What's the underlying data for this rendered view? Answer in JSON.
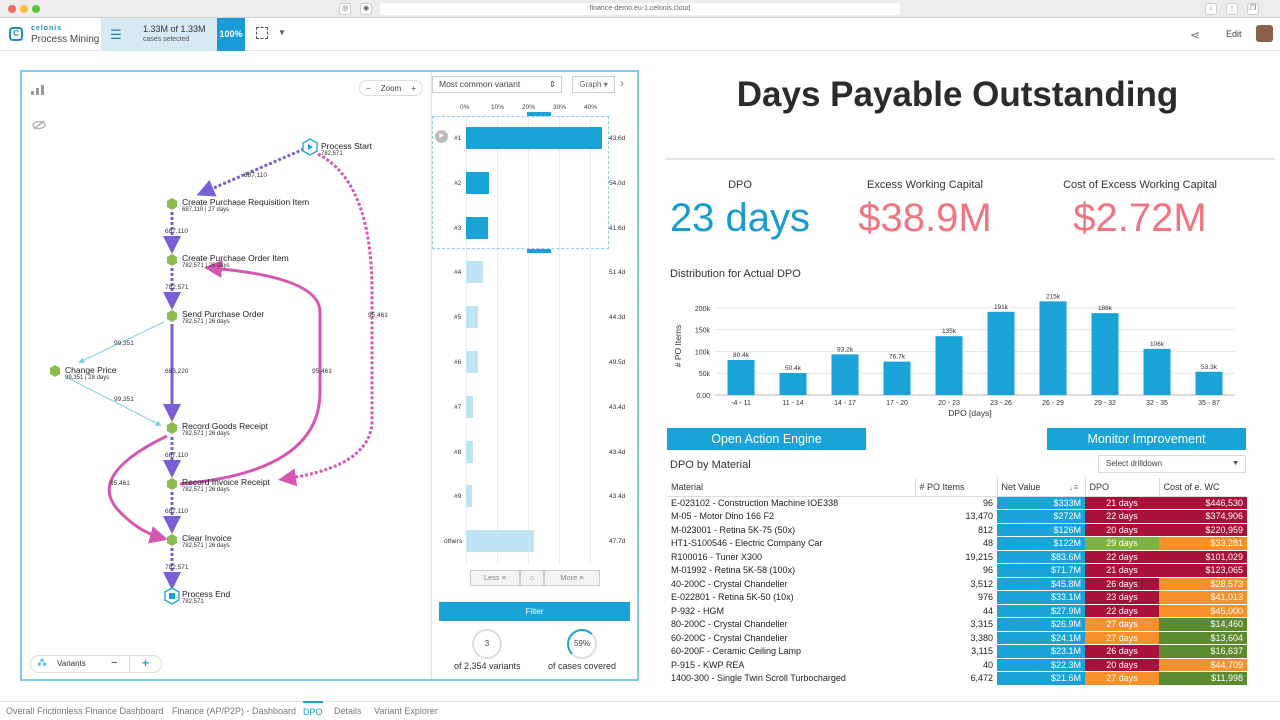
{
  "browser": {
    "url": "finance-demo.eu-1.celonis.cloud"
  },
  "header": {
    "brand": "celonis",
    "product": "Process Mining",
    "cases_count": "1.33M of 1.33M",
    "cases_label": "cases selected",
    "cases_pct": "100%",
    "edit_label": "Edit"
  },
  "graph": {
    "zoom_label": "Zoom",
    "nodes": [
      {
        "label": "Process Start",
        "sub": "782,571"
      },
      {
        "label": "Create Purchase Requisition Item",
        "sub": "687,110 | 27 days"
      },
      {
        "label": "Create Purchase Order Item",
        "sub": "782,571 | 26 days"
      },
      {
        "label": "Send Purchase Order",
        "sub": "782,571 | 26 days"
      },
      {
        "label": "Change Price",
        "sub": "99,351 | 28 days"
      },
      {
        "label": "Record Goods Receipt",
        "sub": "782,571 | 26 days"
      },
      {
        "label": "Record Invoice Receipt",
        "sub": "782,571 | 26 days"
      },
      {
        "label": "Clear Invoice",
        "sub": "782,571 | 26 days"
      },
      {
        "label": "Process End",
        "sub": "782,571"
      }
    ],
    "edges": [
      "687,110",
      "687,110",
      "782,571",
      "99,351",
      "683,220",
      "99,351",
      "95,461",
      "687,110",
      "95,461",
      "687,110",
      "95,461",
      "782,571"
    ],
    "variants_label": "Variants"
  },
  "variants": {
    "select": "Most common variant",
    "view": "Graph",
    "ticks": [
      "0%",
      "10%",
      "20%",
      "30%",
      "40%"
    ],
    "rows": [
      {
        "label": "#1",
        "duration": "43.6d",
        "share": 44
      },
      {
        "label": "#2",
        "duration": "54.0d",
        "share": 7.5
      },
      {
        "label": "#3",
        "duration": "41.6d",
        "share": 7
      },
      {
        "label": "#4",
        "duration": "51.4d",
        "share": 5.5
      },
      {
        "label": "#5",
        "duration": "44.3d",
        "share": 4
      },
      {
        "label": "#6",
        "duration": "49.5d",
        "share": 3.8
      },
      {
        "label": "#7",
        "duration": "43.4d",
        "share": 2.2
      },
      {
        "label": "#8",
        "duration": "43.4d",
        "share": 2.2
      },
      {
        "label": "#9",
        "duration": "43.4d",
        "share": 2
      },
      {
        "label": "others",
        "duration": "47.7d",
        "share": 22
      }
    ],
    "less": "Less",
    "more": "More",
    "filter": "Filter",
    "count": "3",
    "count_label": "of 2,354 variants",
    "coverage": "59%",
    "coverage_label": "of cases covered"
  },
  "title": "Days Payable Outstanding",
  "kpis": [
    {
      "label": "DPO",
      "value": "23 days",
      "color": "#1a9bd0"
    },
    {
      "label": "Excess Working Capital",
      "value": "$38.9M",
      "color": "#ef7580"
    },
    {
      "label": "Cost of Excess Working Capital",
      "value": "$2.72M",
      "color": "#ef7580"
    }
  ],
  "chart_data": {
    "type": "bar",
    "title": "Distribution for Actual DPO",
    "xlabel": "DPO [days]",
    "ylabel": "# PO Items",
    "categories": [
      "-4 - 11",
      "11 - 14",
      "14 - 17",
      "17 - 20",
      "20 - 23",
      "23 - 26",
      "26 - 29",
      "29 - 32",
      "32 - 35",
      "35 - 87"
    ],
    "values": [
      80400,
      50400,
      93200,
      76700,
      135000,
      191000,
      215000,
      188000,
      106000,
      53300
    ],
    "data_labels": [
      "80.4k",
      "50.4k",
      "93.2k",
      "76.7k",
      "135k",
      "191k",
      "215k",
      "188k",
      "106k",
      "53.3k"
    ],
    "yticks": [
      "0.00",
      "50k",
      "100k",
      "150k",
      "200k"
    ],
    "ylim": [
      0,
      225000
    ],
    "color": "#19a3d6"
  },
  "actions": {
    "open": "Open Action Engine",
    "monitor": "Monitor Improvement"
  },
  "table": {
    "title": "DPO by Material",
    "drilldown": "Select drilldown",
    "headers": [
      "Material",
      "# PO Items",
      "Net Value",
      "DPO",
      "Cost of e. WC"
    ],
    "rows": [
      [
        "E-023102 - Construction Machine IOE338",
        "96",
        "$333M",
        "21 days",
        "$446,530"
      ],
      [
        "M-05 - Motor Dino 166 F2",
        "13,470",
        "$272M",
        "22 days",
        "$374,906"
      ],
      [
        "M-023001 - Retina 5K-75 (50x)",
        "812",
        "$126M",
        "20 days",
        "$220,959"
      ],
      [
        "HT1-S100546 - Electric Company Car",
        "48",
        "$122M",
        "29 days",
        "$33,281"
      ],
      [
        "R100016 - Tuner X300",
        "19,215",
        "$83.6M",
        "22 days",
        "$101,029"
      ],
      [
        "M-01992 - Retina 5K-58 (100x)",
        "96",
        "$71.7M",
        "21 days",
        "$123,065"
      ],
      [
        "40-200C - Crystal Chandelier",
        "3,512",
        "$45.8M",
        "26 days",
        "$28,573"
      ],
      [
        "E-022801 - Retina 5K-50 (10x)",
        "976",
        "$33.1M",
        "23 days",
        "$41,013"
      ],
      [
        "P-932 - HGM",
        "44",
        "$27.9M",
        "22 days",
        "$45,000"
      ],
      [
        "80-200C - Crystal Chandelier",
        "3,315",
        "$26.9M",
        "27 days",
        "$14,460"
      ],
      [
        "60-200C - Crystal Chandelier",
        "3,380",
        "$24.1M",
        "27 days",
        "$13,604"
      ],
      [
        "60-200F - Ceramic Ceiling Lamp",
        "3,115",
        "$23.1M",
        "26 days",
        "$16,637"
      ],
      [
        "P-915 - KWP REA",
        "40",
        "$22.3M",
        "20 days",
        "$44,709"
      ],
      [
        "1400-300 - Single Twin Scroll Turbocharged",
        "6,472",
        "$21.6M",
        "27 days",
        "$11,998"
      ]
    ],
    "dpo_colors": [
      "#a8123a",
      "#a8123a",
      "#a8123a",
      "#7cb342",
      "#a8123a",
      "#a8123a",
      "#a8123a",
      "#a8123a",
      "#a8123a",
      "#f5902a",
      "#f5902a",
      "#a8123a",
      "#a8123a",
      "#f5902a"
    ],
    "cost_colors": [
      "#a8123a",
      "#a8123a",
      "#a8123a",
      "#f5902a",
      "#a8123a",
      "#a8123a",
      "#f5902a",
      "#f5902a",
      "#f5902a",
      "#5c8a2e",
      "#5c8a2e",
      "#5c8a2e",
      "#f5902a",
      "#5c8a2e"
    ],
    "net_color": "#19a3d6"
  },
  "tabs": [
    "Overall Frictionless Finance Dashboard",
    "Finance (AP/P2P) - Dashboard",
    "DPO",
    "Details",
    "Variant Explorer"
  ]
}
